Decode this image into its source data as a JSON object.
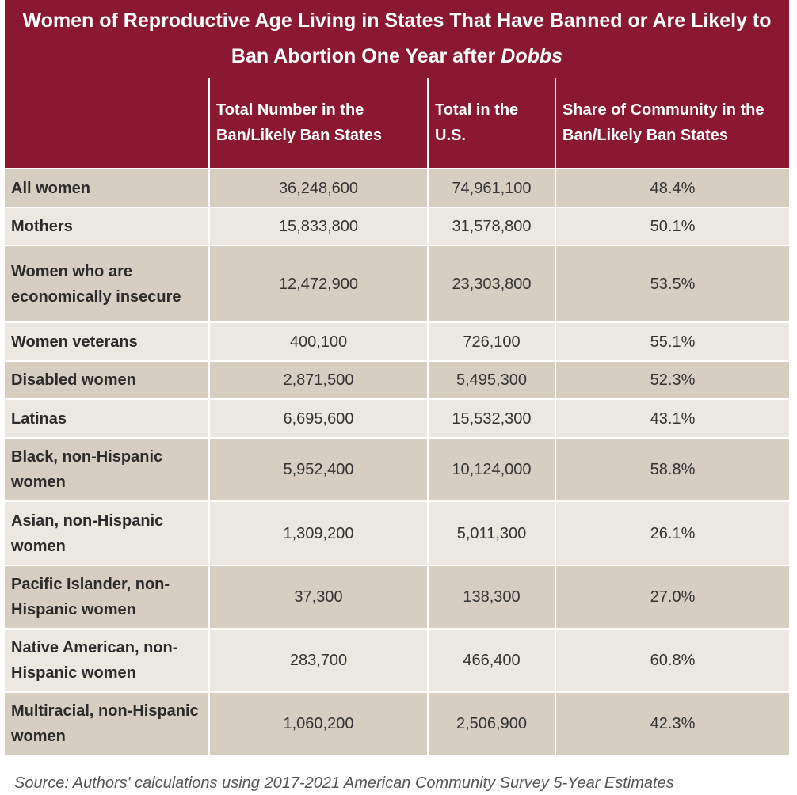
{
  "chart_data": {
    "type": "table",
    "title_part1": "Women of Reproductive Age Living in States That Have Banned or Are Likely to Ban Abortion One Year after ",
    "title_italic": "Dobbs",
    "columns": [
      "",
      "Total Number in the Ban/Likely Ban States",
      "Total in the U.S.",
      "Share of Community in the Ban/Likely Ban States"
    ],
    "rows": [
      {
        "label": "All women",
        "ban_states": "36,248,600",
        "us_total": "74,961,100",
        "share": "48.4%"
      },
      {
        "label": "Mothers",
        "ban_states": "15,833,800",
        "us_total": "31,578,800",
        "share": "50.1%"
      },
      {
        "label": "Women who are economically insecure",
        "ban_states": "12,472,900",
        "us_total": "23,303,800",
        "share": "53.5%"
      },
      {
        "label": "Women veterans",
        "ban_states": "400,100",
        "us_total": "726,100",
        "share": "55.1%"
      },
      {
        "label": "Disabled women",
        "ban_states": "2,871,500",
        "us_total": "5,495,300",
        "share": "52.3%"
      },
      {
        "label": "Latinas",
        "ban_states": "6,695,600",
        "us_total": "15,532,300",
        "share": "43.1%"
      },
      {
        "label": "Black, non-Hispanic women",
        "ban_states": "5,952,400",
        "us_total": "10,124,000",
        "share": "58.8%"
      },
      {
        "label": "Asian, non-Hispanic women",
        "ban_states": "1,309,200",
        "us_total": "5,011,300",
        "share": "26.1%"
      },
      {
        "label": "Pacific Islander, non-Hispanic women",
        "ban_states": "37,300",
        "us_total": "138,300",
        "share": "27.0%"
      },
      {
        "label": "Native American, non-Hispanic women",
        "ban_states": "283,700",
        "us_total": "466,400",
        "share": "60.8%"
      },
      {
        "label": "Multiracial, non-Hispanic women",
        "ban_states": "1,060,200",
        "us_total": "2,506,900",
        "share": "42.3%"
      }
    ],
    "source": "Source: Authors' calculations using 2017-2021 American Community Survey 5-Year Estimates"
  },
  "colors": {
    "header_bg": "#8a1830",
    "row_dark": "#d6cec1",
    "row_light": "#ebe8e2"
  }
}
